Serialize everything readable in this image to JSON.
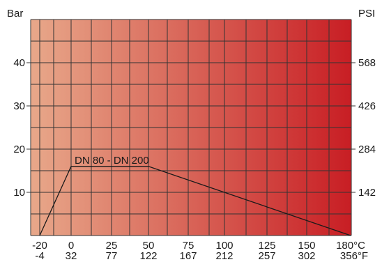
{
  "chart_data": {
    "type": "line",
    "ylabel_left": "Bar",
    "ylabel_right": "PSI",
    "x_unit_c": "°C",
    "x_unit_f": "°F",
    "xlim": [
      -20,
      180
    ],
    "ylim": [
      0,
      50
    ],
    "x_ticks_c": [
      "-20",
      "0",
      "25",
      "50",
      "75",
      "100",
      "125",
      "150",
      "180°C"
    ],
    "x_ticks_f": [
      "-4",
      "32",
      "77",
      "122",
      "167",
      "212",
      "257",
      "302",
      "356°F"
    ],
    "y_ticks_left": [
      "10",
      "20",
      "30",
      "40"
    ],
    "y_ticks_right": [
      "142",
      "284",
      "426",
      "568"
    ],
    "y_tick_values": [
      10,
      20,
      30,
      40
    ],
    "grid": true,
    "background_gradient": [
      "#e8a88a",
      "#c81e24"
    ],
    "series": [
      {
        "name": "DN 80 - DN 200",
        "color": "#1a1a1a",
        "points": [
          [
            -20,
            0
          ],
          [
            0,
            16
          ],
          [
            50,
            16
          ],
          [
            180,
            0
          ]
        ]
      }
    ]
  }
}
